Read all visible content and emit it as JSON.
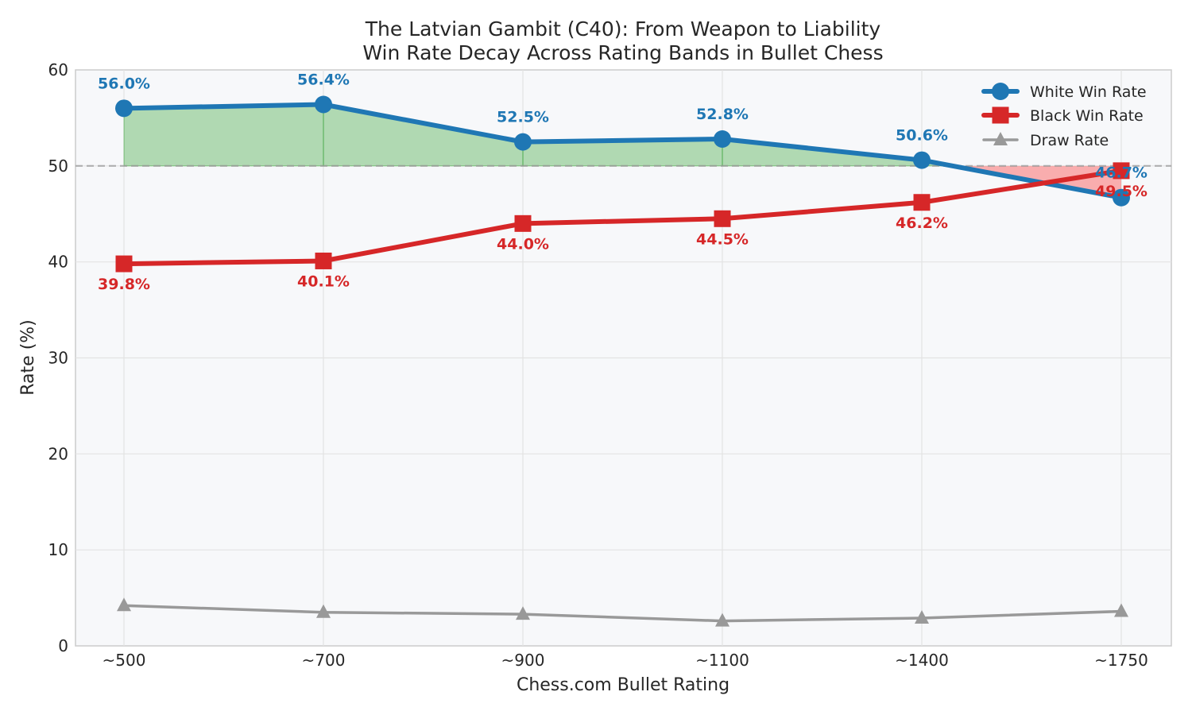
{
  "chart_data": {
    "type": "line",
    "title": "The Latvian Gambit (C40): From Weapon to Liability",
    "subtitle": "Win Rate Decay Across Rating Bands in Bullet Chess",
    "xlabel": "Chess.com Bullet Rating",
    "ylabel": "Rate (%)",
    "categories": [
      "~500",
      "~700",
      "~900",
      "~1100",
      "~1400",
      "~1750"
    ],
    "ylim": [
      0,
      60
    ],
    "yticks": [
      "0",
      "10",
      "20",
      "30",
      "40",
      "50",
      "60"
    ],
    "reference_line": 50,
    "grid": true,
    "legend_position": "top-right",
    "series": [
      {
        "name": "White Win Rate",
        "color": "#1f77b4",
        "marker": "circle",
        "values": [
          56.0,
          56.4,
          52.5,
          52.8,
          50.6,
          46.7
        ],
        "labels": [
          "56.0%",
          "56.4%",
          "52.5%",
          "52.8%",
          "50.6%",
          "46.7%"
        ]
      },
      {
        "name": "Black Win Rate",
        "color": "#d62728",
        "marker": "square",
        "values": [
          39.8,
          40.1,
          44.0,
          44.5,
          46.2,
          49.5
        ],
        "labels": [
          "39.8%",
          "40.1%",
          "44.0%",
          "44.5%",
          "46.2%",
          "49.5%"
        ]
      },
      {
        "name": "Draw Rate",
        "color": "#999999",
        "marker": "triangle",
        "values": [
          4.2,
          3.5,
          3.3,
          2.6,
          2.9,
          3.6
        ]
      }
    ],
    "fill_above_color": "#2ca02c",
    "fill_below_color": "#ff0000"
  }
}
